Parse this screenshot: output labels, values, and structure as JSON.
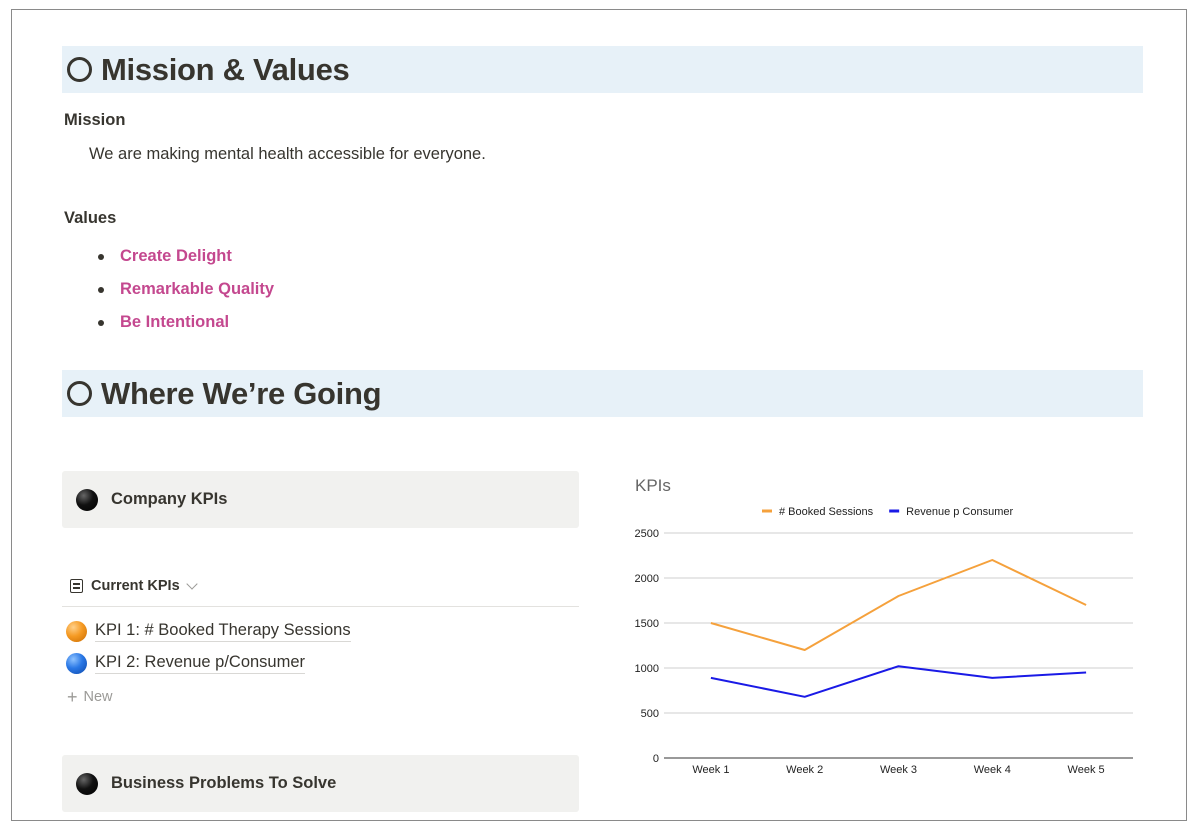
{
  "sections": [
    {
      "title": "Mission & Values"
    },
    {
      "title": "Where We’re Going"
    }
  ],
  "mission": {
    "label": "Mission",
    "text": "We are making mental health accessible for everyone."
  },
  "values": {
    "label": "Values",
    "items": [
      "Create Delight",
      "Remarkable Quality",
      "Be Intentional"
    ],
    "color": "#c4488f"
  },
  "callouts": [
    "Company KPIs",
    "Business Problems To Solve"
  ],
  "kpi_view": {
    "label": "Current KPIs",
    "items": [
      "KPI 1: # Booked Therapy Sessions",
      "KPI 2: Revenue p/Consumer"
    ],
    "new_label": "New"
  },
  "chart_data": {
    "type": "line",
    "title": "KPIs",
    "categories": [
      "Week 1",
      "Week 2",
      "Week 3",
      "Week 4",
      "Week 5"
    ],
    "series": [
      {
        "name": "# Booked Sessions",
        "values": [
          1500,
          1200,
          1800,
          2200,
          1700
        ],
        "color": "#f5a13c"
      },
      {
        "name": "Revenue p Consumer",
        "values": [
          890,
          680,
          1020,
          890,
          950
        ],
        "color": "#1a1ae6"
      }
    ],
    "yticks": [
      "0",
      "500",
      "1000",
      "1500",
      "2000",
      "2500"
    ],
    "ylim": [
      0,
      2500
    ],
    "grid": true,
    "legend": "top"
  }
}
